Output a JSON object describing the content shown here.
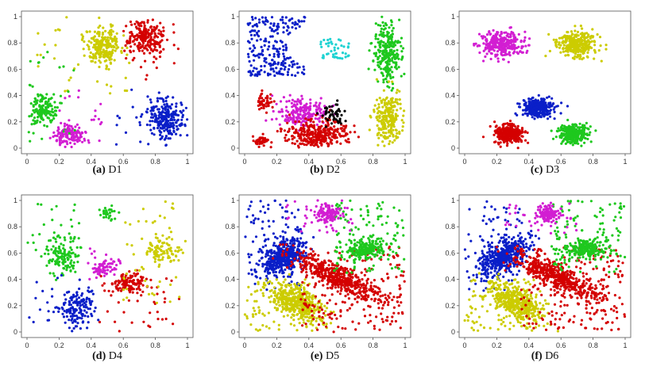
{
  "figure": {
    "palette": {
      "red": "#d40000",
      "blue": "#0a1fc8",
      "green": "#1ec81e",
      "yellow": "#cccc00",
      "magenta": "#d21ed2",
      "cyan": "#1ed2d2",
      "black": "#000000"
    }
  },
  "chart_data": [
    {
      "type": "scatter",
      "caption_label": "(a)",
      "caption_name": "D1",
      "xlim": [
        0,
        1
      ],
      "ylim": [
        0,
        1
      ],
      "xticks": [
        "0",
        "0.2",
        "0.4",
        "0.6",
        "0.8",
        "1"
      ],
      "yticks": [
        "0",
        "0.2",
        "0.4",
        "0.6",
        "0.8",
        "1"
      ],
      "grid": false,
      "clusters": [
        {
          "color": "yellow",
          "shape": "gauss",
          "cx": 0.48,
          "cy": 0.78,
          "sx": 0.055,
          "sy": 0.07,
          "n": 220
        },
        {
          "color": "red",
          "shape": "gauss",
          "cx": 0.74,
          "cy": 0.84,
          "sx": 0.055,
          "sy": 0.06,
          "n": 210
        },
        {
          "color": "green",
          "shape": "gauss",
          "cx": 0.1,
          "cy": 0.3,
          "sx": 0.045,
          "sy": 0.055,
          "n": 150
        },
        {
          "color": "magenta",
          "shape": "gauss",
          "cx": 0.26,
          "cy": 0.1,
          "sx": 0.05,
          "sy": 0.04,
          "n": 130
        },
        {
          "color": "blue",
          "shape": "gauss",
          "cx": 0.86,
          "cy": 0.23,
          "sx": 0.06,
          "sy": 0.07,
          "n": 220
        },
        {
          "color": "yellow",
          "shape": "uniform",
          "x": [
            0.05,
            0.65
          ],
          "y": [
            0.4,
            1.0
          ],
          "n": 35
        },
        {
          "color": "green",
          "shape": "uniform",
          "x": [
            0.0,
            0.3
          ],
          "y": [
            0.05,
            0.75
          ],
          "n": 25
        },
        {
          "color": "red",
          "shape": "uniform",
          "x": [
            0.6,
            0.95
          ],
          "y": [
            0.5,
            0.95
          ],
          "n": 25
        },
        {
          "color": "blue",
          "shape": "uniform",
          "x": [
            0.55,
            1.0
          ],
          "y": [
            0.02,
            0.45
          ],
          "n": 30
        },
        {
          "color": "magenta",
          "shape": "uniform",
          "x": [
            0.2,
            0.55
          ],
          "y": [
            0.02,
            0.45
          ],
          "n": 20
        }
      ]
    },
    {
      "type": "scatter",
      "caption_label": "(b)",
      "caption_name": "D2",
      "xlim": [
        0,
        1
      ],
      "ylim": [
        0,
        1
      ],
      "xticks": [
        "0",
        "0.2",
        "0.4",
        "0.6",
        "0.8",
        "1"
      ],
      "yticks": [
        "0",
        "0.2",
        "0.4",
        "0.6",
        "0.8",
        "1"
      ],
      "grid": false,
      "clusters": [
        {
          "color": "blue",
          "shape": "uniform",
          "x": [
            0.02,
            0.38
          ],
          "y": [
            0.55,
            1.0
          ],
          "n": 230,
          "notch": {
            "cx": 0.4,
            "cy": 0.77,
            "r": 0.14
          }
        },
        {
          "color": "cyan",
          "shape": "uniform",
          "x": [
            0.46,
            0.66
          ],
          "y": [
            0.68,
            0.83
          ],
          "n": 45
        },
        {
          "color": "green",
          "shape": "gauss",
          "cx": 0.89,
          "cy": 0.74,
          "sx": 0.045,
          "sy": 0.11,
          "n": 260
        },
        {
          "color": "green",
          "shape": "uniform",
          "x": [
            0.88,
            0.91
          ],
          "y": [
            0.46,
            0.6
          ],
          "n": 15
        },
        {
          "color": "yellow",
          "shape": "gauss",
          "cx": 0.89,
          "cy": 0.23,
          "sx": 0.045,
          "sy": 0.09,
          "n": 230
        },
        {
          "color": "red",
          "shape": "gauss",
          "cx": 0.12,
          "cy": 0.35,
          "sx": 0.025,
          "sy": 0.03,
          "n": 45
        },
        {
          "color": "red",
          "shape": "gauss",
          "cx": 0.1,
          "cy": 0.06,
          "sx": 0.025,
          "sy": 0.02,
          "n": 45
        },
        {
          "color": "magenta",
          "shape": "gauss",
          "cx": 0.36,
          "cy": 0.27,
          "sx": 0.07,
          "sy": 0.05,
          "n": 200
        },
        {
          "color": "red",
          "shape": "gauss",
          "cx": 0.45,
          "cy": 0.11,
          "sx": 0.1,
          "sy": 0.05,
          "n": 330
        },
        {
          "color": "black",
          "shape": "gauss",
          "cx": 0.55,
          "cy": 0.26,
          "sx": 0.035,
          "sy": 0.04,
          "n": 50
        }
      ]
    },
    {
      "type": "scatter",
      "caption_label": "(c)",
      "caption_name": "D3",
      "xlim": [
        0,
        1
      ],
      "ylim": [
        0,
        1
      ],
      "xticks": [
        "0",
        "0.2",
        "0.4",
        "0.6",
        "0.8",
        "1"
      ],
      "yticks": [
        "0",
        "0.2",
        "0.4",
        "0.6",
        "0.8",
        "1"
      ],
      "grid": false,
      "clusters": [
        {
          "color": "magenta",
          "shape": "gauss",
          "cx": 0.23,
          "cy": 0.79,
          "sx": 0.07,
          "sy": 0.05,
          "n": 300
        },
        {
          "color": "yellow",
          "shape": "gauss",
          "cx": 0.7,
          "cy": 0.78,
          "sx": 0.065,
          "sy": 0.05,
          "n": 300
        },
        {
          "color": "blue",
          "shape": "gauss",
          "cx": 0.46,
          "cy": 0.31,
          "sx": 0.045,
          "sy": 0.035,
          "n": 330
        },
        {
          "color": "red",
          "shape": "gauss",
          "cx": 0.28,
          "cy": 0.11,
          "sx": 0.045,
          "sy": 0.035,
          "n": 330
        },
        {
          "color": "green",
          "shape": "gauss",
          "cx": 0.68,
          "cy": 0.11,
          "sx": 0.045,
          "sy": 0.035,
          "n": 330
        }
      ]
    },
    {
      "type": "scatter",
      "caption_label": "(d)",
      "caption_name": "D4",
      "xlim": [
        0,
        1
      ],
      "ylim": [
        0,
        1
      ],
      "xticks": [
        "0",
        "0.2",
        "0.4",
        "0.6",
        "0.8",
        "1"
      ],
      "yticks": [
        "0",
        "0.2",
        "0.4",
        "0.6",
        "0.8",
        "1"
      ],
      "grid": false,
      "clusters": [
        {
          "color": "green",
          "shape": "gauss",
          "cx": 0.22,
          "cy": 0.58,
          "sx": 0.055,
          "sy": 0.07,
          "n": 120
        },
        {
          "color": "green",
          "shape": "gauss",
          "cx": 0.5,
          "cy": 0.9,
          "sx": 0.03,
          "sy": 0.025,
          "n": 30
        },
        {
          "color": "green",
          "shape": "uniform",
          "x": [
            0.0,
            0.35
          ],
          "y": [
            0.4,
            1.0
          ],
          "n": 35
        },
        {
          "color": "blue",
          "shape": "gauss",
          "cx": 0.32,
          "cy": 0.2,
          "sx": 0.06,
          "sy": 0.06,
          "n": 130
        },
        {
          "color": "blue",
          "shape": "uniform",
          "x": [
            0.0,
            0.45
          ],
          "y": [
            0.0,
            0.45
          ],
          "n": 30
        },
        {
          "color": "magenta",
          "shape": "gauss",
          "cx": 0.48,
          "cy": 0.49,
          "sx": 0.04,
          "sy": 0.035,
          "n": 70
        },
        {
          "color": "magenta",
          "shape": "uniform",
          "x": [
            0.35,
            0.6
          ],
          "y": [
            0.4,
            0.7
          ],
          "n": 10
        },
        {
          "color": "red",
          "shape": "gauss",
          "cx": 0.64,
          "cy": 0.37,
          "sx": 0.06,
          "sy": 0.04,
          "n": 120
        },
        {
          "color": "red",
          "shape": "uniform",
          "x": [
            0.45,
            0.95
          ],
          "y": [
            0.0,
            0.45
          ],
          "n": 35
        },
        {
          "color": "yellow",
          "shape": "gauss",
          "cx": 0.84,
          "cy": 0.62,
          "sx": 0.06,
          "sy": 0.05,
          "n": 90
        },
        {
          "color": "yellow",
          "shape": "uniform",
          "x": [
            0.6,
            1.0
          ],
          "y": [
            0.2,
            1.0
          ],
          "n": 45
        }
      ]
    },
    {
      "type": "scatter",
      "caption_label": "(e)",
      "caption_name": "D5",
      "xlim": [
        0,
        1
      ],
      "ylim": [
        0,
        1
      ],
      "xticks": [
        "0",
        "0.2",
        "0.4",
        "0.6",
        "0.8",
        "1"
      ],
      "yticks": [
        "0",
        "0.2",
        "0.4",
        "0.6",
        "0.8",
        "1"
      ],
      "grid": false,
      "clusters": [
        {
          "color": "blue",
          "shape": "rot",
          "cx": 0.24,
          "cy": 0.57,
          "sx": 0.09,
          "sy": 0.05,
          "angle": 45,
          "n": 420
        },
        {
          "color": "blue",
          "shape": "uniform",
          "x": [
            0.0,
            0.35
          ],
          "y": [
            0.3,
            1.0
          ],
          "n": 90
        },
        {
          "color": "yellow",
          "shape": "rot",
          "cx": 0.33,
          "cy": 0.22,
          "sx": 0.1,
          "sy": 0.05,
          "angle": -40,
          "n": 420
        },
        {
          "color": "yellow",
          "shape": "uniform",
          "x": [
            0.0,
            0.45
          ],
          "y": [
            0.0,
            0.4
          ],
          "n": 90
        },
        {
          "color": "red",
          "shape": "rot",
          "cx": 0.57,
          "cy": 0.42,
          "sx": 0.16,
          "sy": 0.04,
          "angle": -32,
          "n": 450
        },
        {
          "color": "red",
          "shape": "uniform",
          "x": [
            0.35,
            1.0
          ],
          "y": [
            0.0,
            0.65
          ],
          "n": 220
        },
        {
          "color": "green",
          "shape": "rot",
          "cx": 0.75,
          "cy": 0.63,
          "sx": 0.07,
          "sy": 0.035,
          "angle": 10,
          "n": 200
        },
        {
          "color": "green",
          "shape": "uniform",
          "x": [
            0.55,
            1.0
          ],
          "y": [
            0.45,
            1.0
          ],
          "n": 120
        },
        {
          "color": "magenta",
          "shape": "gauss",
          "cx": 0.52,
          "cy": 0.9,
          "sx": 0.035,
          "sy": 0.03,
          "n": 110
        },
        {
          "color": "magenta",
          "shape": "uniform",
          "x": [
            0.25,
            0.7
          ],
          "y": [
            0.75,
            1.0
          ],
          "n": 40
        }
      ]
    },
    {
      "type": "scatter",
      "caption_label": "(f)",
      "caption_name": "D6",
      "xlim": [
        0,
        1
      ],
      "ylim": [
        0,
        1
      ],
      "xticks": [
        "0",
        "0.2",
        "0.4",
        "0.6",
        "0.8",
        "1"
      ],
      "yticks": [
        "0",
        "0.2",
        "0.4",
        "0.6",
        "0.8",
        "1"
      ],
      "grid": false,
      "clusters": [
        {
          "color": "blue",
          "shape": "rot",
          "cx": 0.24,
          "cy": 0.57,
          "sx": 0.09,
          "sy": 0.05,
          "angle": 45,
          "n": 420
        },
        {
          "color": "blue",
          "shape": "uniform",
          "x": [
            0.0,
            0.35
          ],
          "y": [
            0.3,
            1.0
          ],
          "n": 90
        },
        {
          "color": "yellow",
          "shape": "rot",
          "cx": 0.33,
          "cy": 0.22,
          "sx": 0.1,
          "sy": 0.05,
          "angle": -40,
          "n": 420
        },
        {
          "color": "yellow",
          "shape": "uniform",
          "x": [
            0.0,
            0.45
          ],
          "y": [
            0.0,
            0.4
          ],
          "n": 90
        },
        {
          "color": "red",
          "shape": "rot",
          "cx": 0.57,
          "cy": 0.42,
          "sx": 0.16,
          "sy": 0.04,
          "angle": -32,
          "n": 450
        },
        {
          "color": "red",
          "shape": "uniform",
          "x": [
            0.35,
            1.0
          ],
          "y": [
            0.0,
            0.65
          ],
          "n": 220
        },
        {
          "color": "green",
          "shape": "rot",
          "cx": 0.75,
          "cy": 0.63,
          "sx": 0.07,
          "sy": 0.035,
          "angle": 10,
          "n": 200
        },
        {
          "color": "green",
          "shape": "uniform",
          "x": [
            0.55,
            1.0
          ],
          "y": [
            0.45,
            1.0
          ],
          "n": 120
        },
        {
          "color": "magenta",
          "shape": "gauss",
          "cx": 0.52,
          "cy": 0.9,
          "sx": 0.035,
          "sy": 0.03,
          "n": 110
        },
        {
          "color": "magenta",
          "shape": "uniform",
          "x": [
            0.25,
            0.7
          ],
          "y": [
            0.75,
            1.0
          ],
          "n": 40
        }
      ]
    }
  ]
}
